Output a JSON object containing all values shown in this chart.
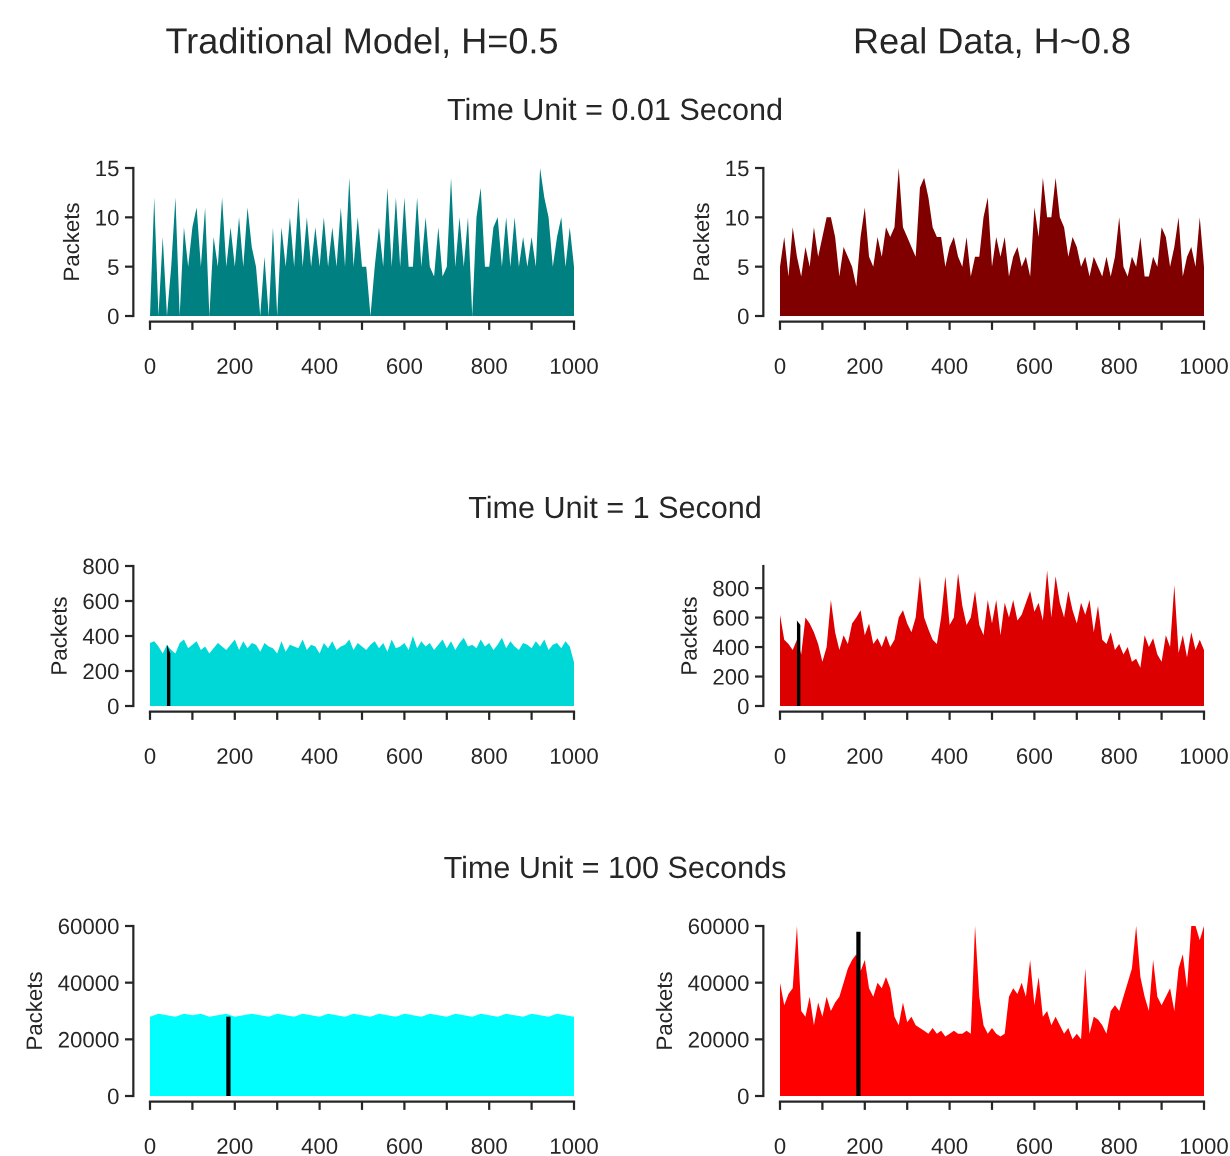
{
  "chart_data": [
    {
      "type": "area",
      "title": "Time Unit = 0.01 Second",
      "annotations": [
        "Traditional Model, H=0.5"
      ],
      "ylabel": "Packets",
      "xlim": [
        0,
        1000
      ],
      "ylim": [
        0,
        15
      ],
      "yticks": [
        0,
        5,
        10,
        15
      ],
      "xticks": [
        0,
        {
          "value": 100,
          "label": null
        },
        200,
        {
          "value": 300,
          "label": null
        },
        400,
        {
          "value": 500,
          "label": null
        },
        600,
        {
          "value": 700,
          "label": null
        },
        800,
        {
          "value": 900,
          "label": null
        },
        1000
      ],
      "grid": false,
      "series": [
        {
          "color": "#008080",
          "x": [
            0,
            10,
            20,
            30,
            40,
            50,
            60,
            70,
            80,
            90,
            100,
            110,
            120,
            130,
            140,
            150,
            160,
            170,
            180,
            190,
            200,
            210,
            220,
            230,
            240,
            250,
            260,
            270,
            280,
            290,
            300,
            310,
            320,
            330,
            340,
            350,
            360,
            370,
            380,
            390,
            400,
            410,
            420,
            430,
            440,
            450,
            460,
            470,
            480,
            490,
            500,
            510,
            520,
            530,
            540,
            550,
            560,
            570,
            580,
            590,
            600,
            610,
            620,
            630,
            640,
            650,
            660,
            670,
            680,
            690,
            700,
            710,
            720,
            730,
            740,
            750,
            760,
            770,
            780,
            790,
            800,
            810,
            820,
            830,
            840,
            850,
            860,
            870,
            880,
            890,
            900,
            910,
            920,
            930,
            940,
            950,
            960,
            970,
            980,
            990,
            1000
          ],
          "values": [
            0,
            12,
            0,
            8,
            0,
            5,
            12,
            0,
            9,
            5,
            9,
            11,
            5,
            11,
            0,
            8,
            5,
            12,
            5,
            9,
            5,
            10,
            5,
            11,
            7,
            5,
            0,
            6,
            0,
            9,
            0,
            9,
            5,
            10,
            5,
            12,
            5,
            10,
            5,
            9,
            5,
            10,
            5,
            9,
            5,
            11,
            5,
            14,
            5,
            10,
            5,
            5,
            0,
            5,
            9,
            5,
            13,
            5,
            12,
            5,
            12,
            5,
            5,
            12,
            5,
            10,
            5,
            4,
            9,
            4,
            5,
            14,
            5,
            10,
            5,
            10,
            0,
            10,
            13,
            5,
            5,
            9,
            10,
            5,
            10,
            5,
            10,
            5,
            8,
            5,
            8,
            5,
            15,
            12,
            10,
            5,
            8,
            10,
            5,
            9,
            5
          ]
        }
      ]
    },
    {
      "type": "area",
      "annotations": [
        "Real Data, H~0.8"
      ],
      "ylabel": "Packets",
      "xlim": [
        0,
        1000
      ],
      "ylim": [
        0,
        15
      ],
      "yticks": [
        0,
        5,
        10,
        15
      ],
      "xticks": [
        0,
        {
          "value": 100,
          "label": null
        },
        200,
        {
          "value": 300,
          "label": null
        },
        400,
        {
          "value": 500,
          "label": null
        },
        600,
        {
          "value": 700,
          "label": null
        },
        800,
        {
          "value": 900,
          "label": null
        },
        1000
      ],
      "grid": false,
      "series": [
        {
          "color": "#800000",
          "x": [
            0,
            10,
            20,
            30,
            40,
            50,
            60,
            70,
            80,
            90,
            100,
            110,
            120,
            130,
            140,
            150,
            160,
            170,
            180,
            190,
            200,
            210,
            220,
            230,
            240,
            250,
            260,
            270,
            280,
            290,
            300,
            310,
            320,
            330,
            340,
            350,
            360,
            370,
            380,
            390,
            400,
            410,
            420,
            430,
            440,
            450,
            460,
            470,
            480,
            490,
            500,
            510,
            520,
            530,
            540,
            550,
            560,
            570,
            580,
            590,
            600,
            610,
            620,
            630,
            640,
            650,
            660,
            670,
            680,
            690,
            700,
            710,
            720,
            730,
            740,
            750,
            760,
            770,
            780,
            790,
            800,
            810,
            820,
            830,
            840,
            850,
            860,
            870,
            880,
            890,
            900,
            910,
            920,
            930,
            940,
            950,
            960,
            970,
            980,
            990,
            1000
          ],
          "values": [
            5,
            8,
            4,
            9,
            6,
            4,
            7,
            5,
            9,
            6,
            8,
            10,
            10,
            8,
            4,
            7,
            6,
            5,
            3,
            8,
            11,
            6,
            5,
            8,
            6,
            9,
            8,
            9,
            15,
            9,
            8,
            7,
            6,
            13,
            14,
            12,
            9,
            8,
            8,
            5,
            7,
            8,
            6,
            5,
            8,
            4,
            6,
            6,
            10,
            12,
            5,
            8,
            6,
            8,
            4,
            6,
            7,
            5,
            6,
            4,
            11,
            8,
            14,
            10,
            10,
            14,
            10,
            9,
            6,
            8,
            7,
            5,
            6,
            4,
            6,
            5,
            4,
            6,
            4,
            6,
            10,
            5,
            4,
            6,
            5,
            8,
            4,
            4,
            6,
            5,
            9,
            8,
            5,
            7,
            10,
            4,
            6,
            7,
            5,
            10,
            5
          ]
        }
      ]
    },
    {
      "type": "area",
      "title": "Time Unit = 1 Second",
      "ylabel": "Packets",
      "xlim": [
        0,
        1000
      ],
      "ylim": [
        0,
        800
      ],
      "yticks": [
        0,
        200,
        400,
        600,
        800
      ],
      "xticks": [
        0,
        {
          "value": 100,
          "label": null
        },
        200,
        {
          "value": 300,
          "label": null
        },
        400,
        {
          "value": 500,
          "label": null
        },
        600,
        {
          "value": 700,
          "label": null
        },
        800,
        {
          "value": 900,
          "label": null
        },
        1000
      ],
      "grid": false,
      "series": [
        {
          "color": "#00d8d8",
          "x": [
            0,
            10,
            20,
            30,
            40,
            50,
            60,
            70,
            80,
            90,
            100,
            110,
            120,
            130,
            140,
            150,
            160,
            170,
            180,
            190,
            200,
            210,
            220,
            230,
            240,
            250,
            260,
            270,
            280,
            290,
            300,
            310,
            320,
            330,
            340,
            350,
            360,
            370,
            380,
            390,
            400,
            410,
            420,
            430,
            440,
            450,
            460,
            470,
            480,
            490,
            500,
            510,
            520,
            530,
            540,
            550,
            560,
            570,
            580,
            590,
            600,
            610,
            620,
            630,
            640,
            650,
            660,
            670,
            680,
            690,
            700,
            710,
            720,
            730,
            740,
            750,
            760,
            770,
            780,
            790,
            800,
            810,
            820,
            830,
            840,
            850,
            860,
            870,
            880,
            890,
            900,
            910,
            920,
            930,
            940,
            950,
            960,
            970,
            980,
            990,
            1000
          ],
          "values": [
            360,
            370,
            340,
            300,
            350,
            320,
            300,
            360,
            380,
            330,
            350,
            370,
            320,
            340,
            300,
            330,
            360,
            340,
            320,
            350,
            380,
            320,
            370,
            330,
            360,
            350,
            310,
            360,
            340,
            330,
            300,
            370,
            310,
            350,
            340,
            330,
            380,
            320,
            350,
            340,
            300,
            360,
            330,
            370,
            320,
            340,
            350,
            380,
            320,
            360,
            340,
            320,
            350,
            370,
            330,
            360,
            310,
            380,
            330,
            340,
            360,
            320,
            400,
            330,
            370,
            340,
            360,
            320,
            350,
            380,
            330,
            370,
            320,
            360,
            390,
            340,
            350,
            330,
            380,
            340,
            360,
            320,
            350,
            390,
            330,
            370,
            340,
            320,
            360,
            350,
            330,
            370,
            340,
            380,
            320,
            350,
            360,
            330,
            370,
            340,
            250
          ]
        },
        {
          "type": "area",
          "color": "#000000",
          "x": [
            40,
            48
          ],
          "values": [
            350,
            300
          ]
        }
      ]
    },
    {
      "type": "area",
      "ylabel": "Packets",
      "xlim": [
        0,
        1000
      ],
      "ylim": [
        0,
        950
      ],
      "yticks": [
        0,
        200,
        400,
        600,
        800
      ],
      "xticks": [
        0,
        {
          "value": 100,
          "label": null
        },
        200,
        {
          "value": 300,
          "label": null
        },
        400,
        {
          "value": 500,
          "label": null
        },
        600,
        {
          "value": 700,
          "label": null
        },
        800,
        {
          "value": 900,
          "label": null
        },
        1000
      ],
      "grid": false,
      "series": [
        {
          "color": "#dd0000",
          "x": [
            0,
            10,
            20,
            30,
            40,
            50,
            60,
            70,
            80,
            90,
            100,
            110,
            120,
            130,
            140,
            150,
            160,
            170,
            180,
            190,
            200,
            210,
            220,
            230,
            240,
            250,
            260,
            270,
            280,
            290,
            300,
            310,
            320,
            330,
            340,
            350,
            360,
            370,
            380,
            390,
            400,
            410,
            420,
            430,
            440,
            450,
            460,
            470,
            480,
            490,
            500,
            510,
            520,
            530,
            540,
            550,
            560,
            570,
            580,
            590,
            600,
            610,
            620,
            630,
            640,
            650,
            660,
            670,
            680,
            690,
            700,
            710,
            720,
            730,
            740,
            750,
            760,
            770,
            780,
            790,
            800,
            810,
            820,
            830,
            840,
            850,
            860,
            870,
            880,
            890,
            900,
            910,
            920,
            930,
            940,
            950,
            960,
            970,
            980,
            990,
            1000
          ],
          "values": [
            620,
            450,
            420,
            380,
            450,
            350,
            600,
            560,
            500,
            420,
            300,
            400,
            720,
            500,
            380,
            480,
            420,
            560,
            600,
            650,
            480,
            560,
            420,
            460,
            400,
            480,
            400,
            450,
            600,
            650,
            560,
            500,
            600,
            880,
            600,
            520,
            450,
            420,
            600,
            880,
            550,
            600,
            900,
            680,
            550,
            600,
            780,
            550,
            480,
            720,
            560,
            720,
            480,
            700,
            600,
            720,
            580,
            620,
            700,
            780,
            640,
            700,
            580,
            920,
            600,
            880,
            700,
            600,
            780,
            650,
            560,
            700,
            620,
            720,
            500,
            680,
            450,
            420,
            500,
            380,
            420,
            350,
            400,
            300,
            320,
            260,
            480,
            400,
            460,
            350,
            300,
            480,
            400,
            820,
            360,
            480,
            330,
            500,
            380,
            450,
            380
          ]
        },
        {
          "type": "area",
          "color": "#000000",
          "x": [
            40,
            48
          ],
          "values": [
            580,
            550
          ]
        }
      ]
    },
    {
      "type": "area",
      "title": "Time Unit = 100 Seconds",
      "ylabel": "Packets",
      "xlim": [
        0,
        1000
      ],
      "ylim": [
        0,
        60000
      ],
      "yticks": [
        0,
        20000,
        40000,
        60000
      ],
      "xticks": [
        0,
        {
          "value": 100,
          "label": null
        },
        200,
        {
          "value": 300,
          "label": null
        },
        400,
        {
          "value": 500,
          "label": null
        },
        600,
        {
          "value": 700,
          "label": null
        },
        800,
        {
          "value": 900,
          "label": null
        },
        1000
      ],
      "grid": false,
      "series": [
        {
          "color": "#00ffff",
          "x": [
            0,
            20,
            40,
            60,
            80,
            100,
            120,
            140,
            160,
            180,
            200,
            220,
            240,
            260,
            280,
            300,
            320,
            340,
            360,
            380,
            400,
            420,
            440,
            460,
            480,
            500,
            520,
            540,
            560,
            580,
            600,
            620,
            640,
            660,
            680,
            700,
            720,
            740,
            760,
            780,
            800,
            820,
            840,
            860,
            880,
            900,
            920,
            940,
            960,
            980,
            1000
          ],
          "values": [
            28000,
            29000,
            28500,
            28000,
            29000,
            28500,
            29000,
            28000,
            28500,
            29000,
            28000,
            28500,
            29000,
            28500,
            28000,
            29000,
            28500,
            28000,
            29000,
            28500,
            28000,
            29000,
            28500,
            28000,
            29000,
            28500,
            28000,
            29000,
            28500,
            28000,
            29000,
            28500,
            28000,
            29000,
            28500,
            28000,
            29000,
            28500,
            28000,
            29000,
            28500,
            28000,
            29000,
            28500,
            28000,
            29000,
            28500,
            28000,
            29000,
            28500,
            28000
          ]
        },
        {
          "type": "area",
          "color": "#000000",
          "x": [
            180,
            190
          ],
          "values": [
            28000,
            28000
          ]
        }
      ]
    },
    {
      "type": "area",
      "ylabel": "Packets",
      "xlim": [
        0,
        1000
      ],
      "ylim": [
        0,
        60000
      ],
      "yticks": [
        0,
        20000,
        40000,
        60000
      ],
      "xticks": [
        0,
        {
          "value": 100,
          "label": null
        },
        200,
        {
          "value": 300,
          "label": null
        },
        400,
        {
          "value": 500,
          "label": null
        },
        600,
        {
          "value": 700,
          "label": null
        },
        800,
        {
          "value": 900,
          "label": null
        },
        1000
      ],
      "grid": false,
      "series": [
        {
          "color": "#ff0000",
          "x": [
            0,
            10,
            20,
            30,
            40,
            50,
            60,
            70,
            80,
            90,
            100,
            110,
            120,
            130,
            140,
            150,
            160,
            170,
            180,
            190,
            200,
            210,
            220,
            230,
            240,
            250,
            260,
            270,
            280,
            290,
            300,
            310,
            320,
            330,
            340,
            350,
            360,
            370,
            380,
            390,
            400,
            410,
            420,
            430,
            440,
            450,
            460,
            470,
            480,
            490,
            500,
            510,
            520,
            530,
            540,
            550,
            560,
            570,
            580,
            590,
            600,
            610,
            620,
            630,
            640,
            650,
            660,
            670,
            680,
            690,
            700,
            710,
            720,
            730,
            740,
            750,
            760,
            770,
            780,
            790,
            800,
            810,
            820,
            830,
            840,
            850,
            860,
            870,
            880,
            890,
            900,
            910,
            920,
            930,
            940,
            950,
            960,
            970,
            980,
            990,
            1000
          ],
          "values": [
            40000,
            32000,
            36000,
            38000,
            60000,
            30000,
            28000,
            35000,
            25000,
            33000,
            28000,
            35000,
            30000,
            33000,
            35000,
            40000,
            45000,
            48000,
            50000,
            44000,
            48000,
            38000,
            35000,
            40000,
            38000,
            42000,
            38000,
            28000,
            25000,
            33000,
            26000,
            28000,
            25000,
            24000,
            23000,
            22000,
            24000,
            22000,
            23000,
            21000,
            22000,
            23000,
            22000,
            22000,
            23000,
            22000,
            60000,
            35000,
            25000,
            22000,
            24000,
            22000,
            21000,
            22000,
            35000,
            38000,
            36000,
            40000,
            35000,
            48000,
            32000,
            42000,
            28000,
            30000,
            25000,
            28000,
            25000,
            22000,
            24000,
            20000,
            22000,
            20000,
            45000,
            22000,
            28000,
            27000,
            25000,
            22000,
            30000,
            32000,
            30000,
            35000,
            40000,
            45000,
            60000,
            42000,
            35000,
            30000,
            48000,
            35000,
            32000,
            35000,
            38000,
            30000,
            45000,
            50000,
            38000,
            60000,
            60000,
            55000,
            60000
          ]
        },
        {
          "type": "area",
          "color": "#000000",
          "x": [
            180,
            190
          ],
          "values": [
            58000,
            58000
          ]
        }
      ]
    }
  ]
}
